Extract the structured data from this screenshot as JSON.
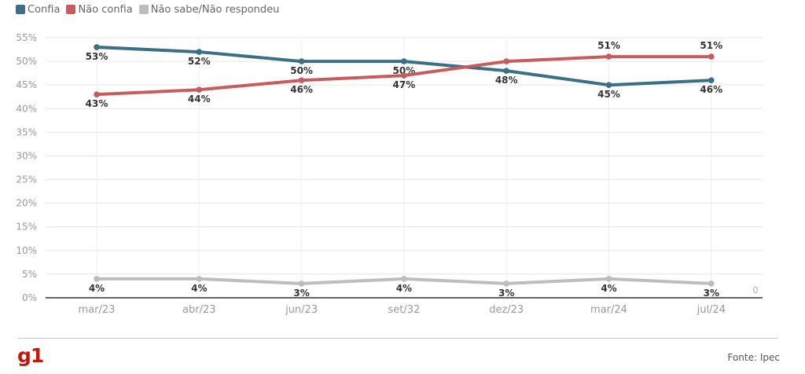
{
  "legend": [
    {
      "label": "Confia",
      "color": "#3b6e87"
    },
    {
      "label": "Não confia",
      "color": "#c85b5e"
    },
    {
      "label": "Não sabe/Não respondeu",
      "color": "#bdbdbd"
    }
  ],
  "chart_data": {
    "type": "line",
    "categories": [
      "mar/23",
      "abr/23",
      "jun/23",
      "set/32",
      "dez/23",
      "mar/24",
      "jul/24"
    ],
    "series": [
      {
        "name": "Confia",
        "color": "#3b6e87",
        "values": [
          53,
          52,
          50,
          50,
          48,
          45,
          46
        ],
        "labels": [
          "53%",
          "52%",
          "50%",
          "50%",
          "48%",
          "45%",
          "46%"
        ],
        "label_position": [
          "below",
          "below",
          "below",
          "below",
          "below",
          "below",
          "below"
        ]
      },
      {
        "name": "Não confia",
        "color": "#c85b5e",
        "values": [
          43,
          44,
          46,
          47,
          50,
          51,
          51
        ],
        "labels": [
          "43%",
          "44%",
          "46%",
          "47%",
          "",
          "51%",
          "51%"
        ],
        "label_position": [
          "below",
          "below",
          "below",
          "below",
          "below",
          "above",
          "above"
        ]
      },
      {
        "name": "Não sabe/Não respondeu",
        "color": "#bdbdbd",
        "values": [
          4,
          4,
          3,
          4,
          3,
          4,
          3
        ],
        "labels": [
          "4%",
          "4%",
          "3%",
          "4%",
          "3%",
          "4%",
          "3%"
        ],
        "label_position": [
          "below",
          "below",
          "below",
          "below",
          "below",
          "below",
          "below"
        ]
      }
    ],
    "y_ticks": [
      "0%",
      "5%",
      "10%",
      "15%",
      "20%",
      "25%",
      "30%",
      "35%",
      "40%",
      "45%",
      "50%",
      "55%"
    ],
    "ylim": [
      0,
      55
    ],
    "extra_label": "0",
    "grid": true,
    "legend_position": "top-left"
  },
  "footer": {
    "logo": "g1",
    "source": "Fonte: Ipec"
  }
}
